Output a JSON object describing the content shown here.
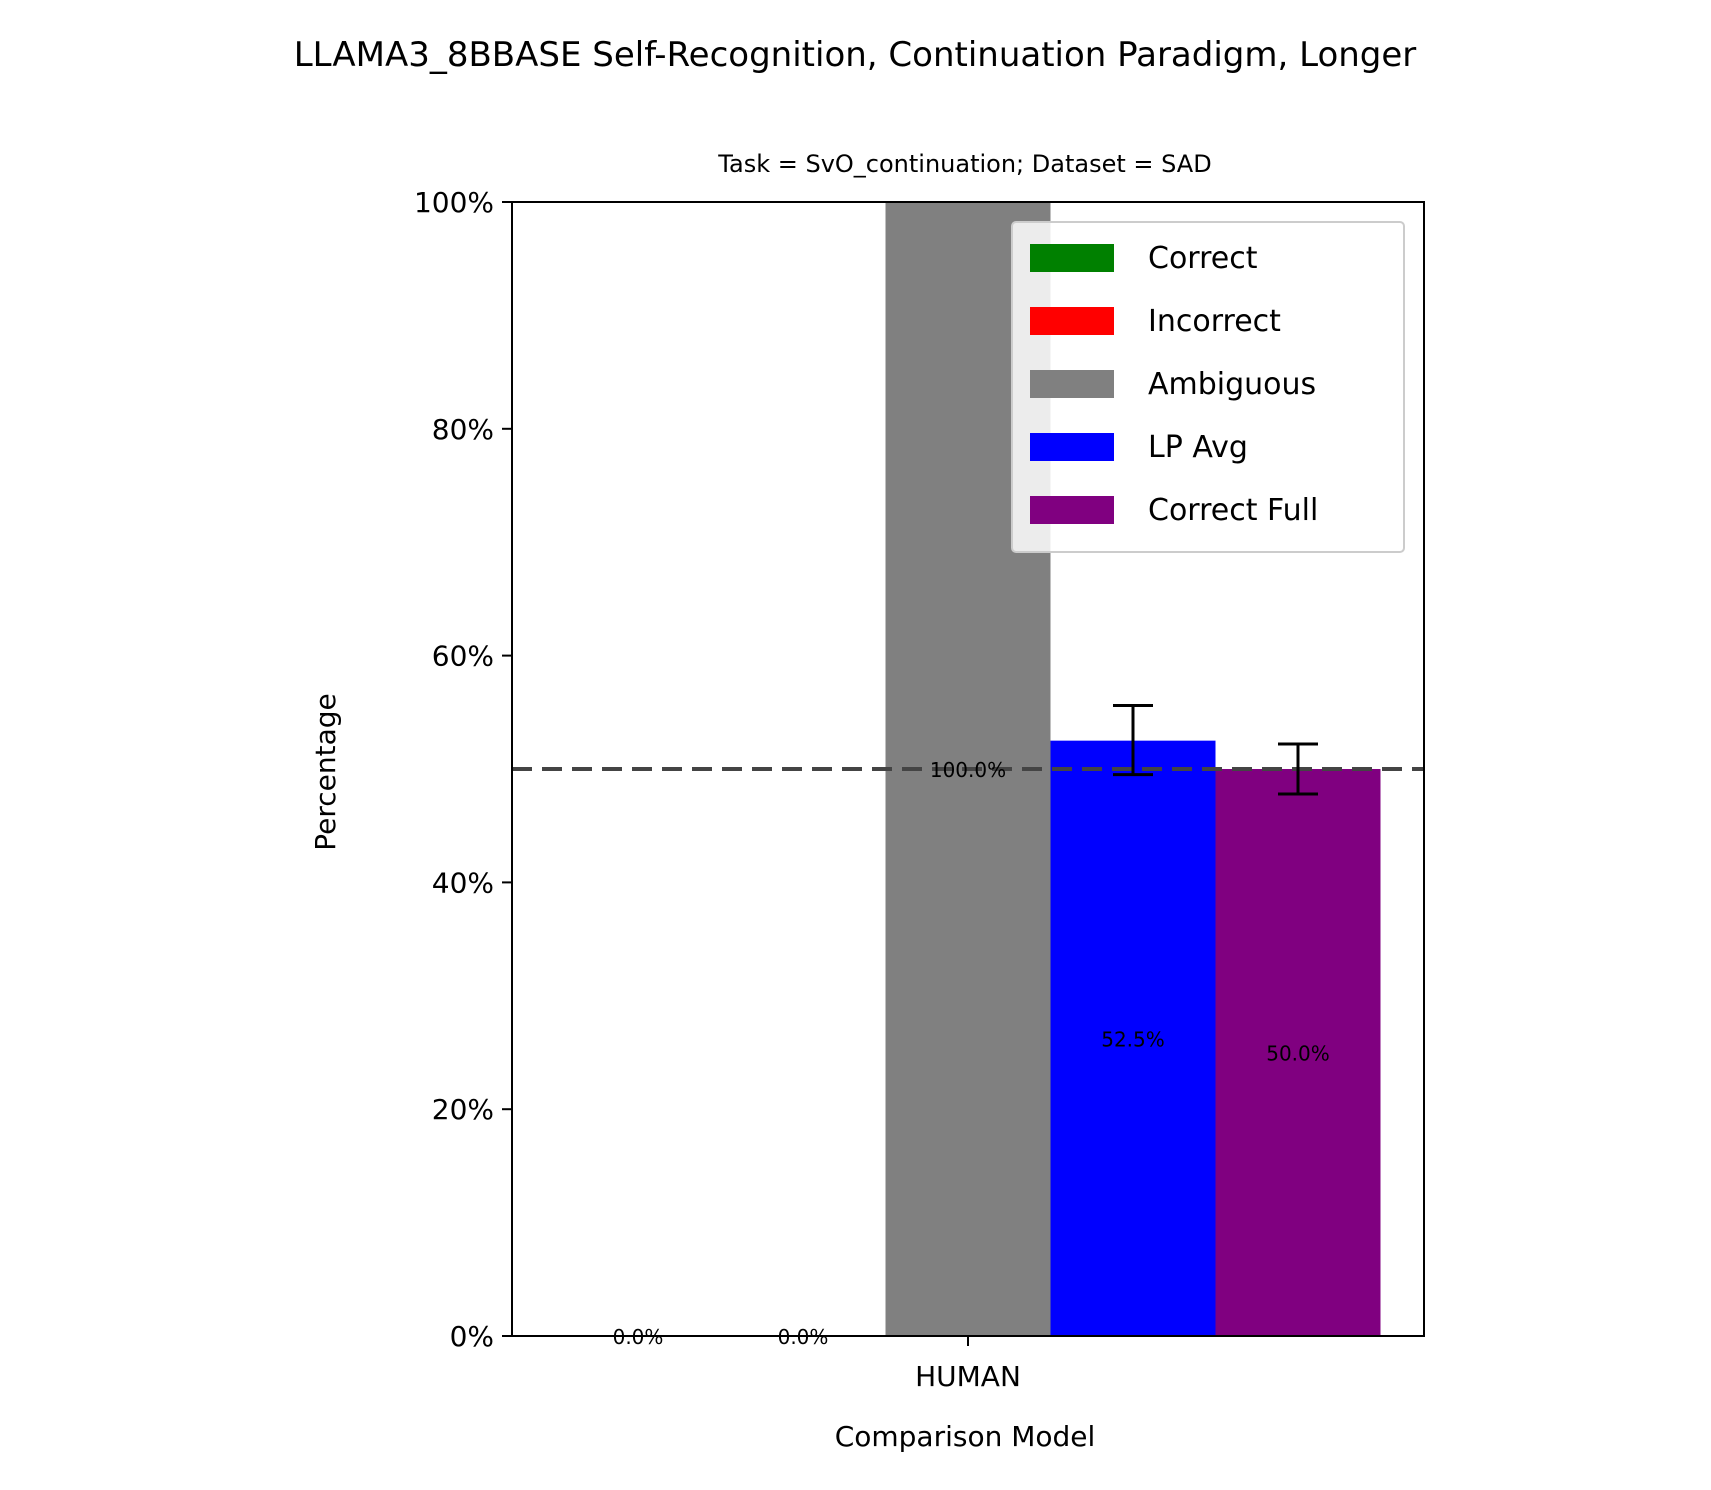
{
  "chart_data": {
    "type": "bar",
    "title": "LLAMA3_8BBASE Self-Recognition, Continuation Paradigm, Longer",
    "subtitle": "Task = SvO_continuation;  Dataset = SAD",
    "xlabel": "Comparison Model",
    "ylabel": "Percentage",
    "ylim": [
      0,
      100
    ],
    "yticks": [
      "0%",
      "20%",
      "40%",
      "60%",
      "80%",
      "100%"
    ],
    "categories": [
      "HUMAN"
    ],
    "series": [
      {
        "name": "Correct",
        "color": "#008000",
        "values": [
          0.0
        ],
        "label": "0.0%"
      },
      {
        "name": "Incorrect",
        "color": "#ff0000",
        "values": [
          0.0
        ],
        "label": "0.0%"
      },
      {
        "name": "Ambiguous",
        "color": "#808080",
        "values": [
          100.0
        ],
        "label": "100.0%"
      },
      {
        "name": "LP Avg",
        "color": "#0000ff",
        "values": [
          52.5
        ],
        "label": "52.5%",
        "error": [
          49.5,
          55.6
        ]
      },
      {
        "name": "Correct Full",
        "color": "#800080",
        "values": [
          50.0
        ],
        "label": "50.0%",
        "error": [
          47.8,
          52.2
        ]
      }
    ],
    "reference_line": {
      "y": 50,
      "style": "dashed",
      "color": "#444444"
    },
    "legend_position": "top-right",
    "grid": false
  }
}
